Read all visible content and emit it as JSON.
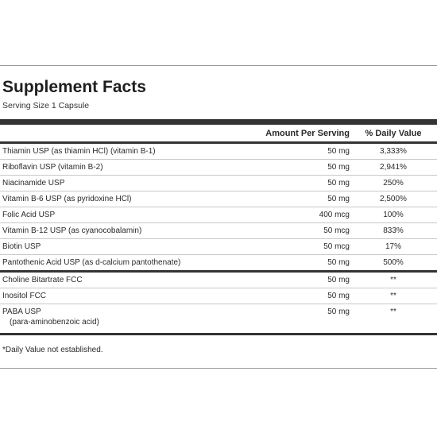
{
  "title": "Supplement Facts",
  "serving": "Serving Size 1 Capsule",
  "headers": {
    "amount": "Amount Per Serving",
    "daily_value": "% Daily Value"
  },
  "rows": [
    {
      "name": "Thiamin USP (as thiamin HCl) (vitamin B-1)",
      "amount": "50 mg",
      "dv": "3,333%"
    },
    {
      "name": "Riboflavin USP (vitamin B-2)",
      "amount": "50 mg",
      "dv": "2,941%"
    },
    {
      "name": "Niacinamide USP",
      "amount": "50 mg",
      "dv": "250%"
    },
    {
      "name": "Vitamin B-6 USP (as pyridoxine HCl)",
      "amount": "50 mg",
      "dv": "2,500%"
    },
    {
      "name": "Folic Acid USP",
      "amount": "400 mcg",
      "dv": "100%"
    },
    {
      "name": "Vitamin B-12 USP (as cyanocobalamin)",
      "amount": "50 mcg",
      "dv": "833%"
    },
    {
      "name": "Biotin USP",
      "amount": "50 mcg",
      "dv": "17%"
    },
    {
      "name": "Pantothenic Acid USP (as d-calcium pantothenate)",
      "amount": "50 mg",
      "dv": "500%"
    }
  ],
  "other_rows": [
    {
      "name": "Choline Bitartrate FCC",
      "amount": "50 mg",
      "dv": "**"
    },
    {
      "name": "Inositol FCC",
      "amount": "50 mg",
      "dv": "**"
    },
    {
      "name": "PABA USP",
      "subname": "(para-aminobenzoic acid)",
      "amount": "50 mg",
      "dv": "**"
    }
  ],
  "footnote": "*Daily Value not established."
}
